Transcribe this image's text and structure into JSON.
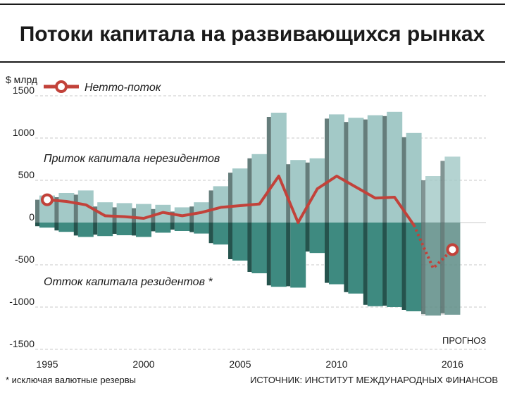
{
  "title": "Потоки капитала на развивающихся рынках",
  "unit_label": "$ млрд",
  "legend_label": "Нетто-поток",
  "annotation_inflow": "Приток капитала нерезидентов",
  "annotation_outflow": "Отток капитала резидентов *",
  "forecast_label": "ПРОГНОЗ",
  "footnote": "* исключая валютные резервы",
  "source": "ИСТОЧНИК: ИНСТИТУТ МЕЖДУНАРОДНЫХ ФИНАНСОВ",
  "colors": {
    "inflow": "#a3c9c7",
    "outflow": "#3e8a80",
    "net_line": "#c2423a",
    "forecast_shade": "#9a9a9a",
    "grid": "#c8c8c8"
  },
  "chart_data": {
    "type": "bar",
    "title": "Потоки капитала на развивающихся рынках",
    "ylabel": "$ млрд",
    "ylim": [
      -1500,
      1500
    ],
    "yticks": [
      -1500,
      -1000,
      -500,
      0,
      500,
      1000,
      1500
    ],
    "xticks": [
      "1995",
      "2000",
      "2005",
      "2010",
      "2016"
    ],
    "grid": true,
    "forecast_from": 2015,
    "categories": [
      1995,
      1996,
      1997,
      1998,
      1999,
      2000,
      2001,
      2002,
      2003,
      2004,
      2005,
      2006,
      2007,
      2008,
      2009,
      2010,
      2011,
      2012,
      2013,
      2014,
      2015,
      2016
    ],
    "series": [
      {
        "name": "Приток капитала нерезидентов",
        "type": "bar",
        "values": [
          320,
          350,
          380,
          240,
          230,
          220,
          210,
          180,
          240,
          430,
          640,
          810,
          1300,
          740,
          760,
          1280,
          1240,
          1270,
          1310,
          1060,
          550,
          780
        ]
      },
      {
        "name": "Отток капитала резидентов *",
        "type": "bar",
        "values": [
          -60,
          -110,
          -170,
          -160,
          -150,
          -170,
          -120,
          -100,
          -130,
          -260,
          -450,
          -600,
          -760,
          -770,
          -360,
          -730,
          -840,
          -990,
          -1000,
          -1050,
          -1100,
          -1090
        ]
      },
      {
        "name": "Нетто-поток",
        "type": "line",
        "values": [
          270,
          250,
          210,
          80,
          70,
          50,
          120,
          80,
          120,
          180,
          200,
          220,
          550,
          0,
          400,
          550,
          420,
          290,
          300,
          -30,
          -540,
          -320
        ]
      }
    ]
  }
}
